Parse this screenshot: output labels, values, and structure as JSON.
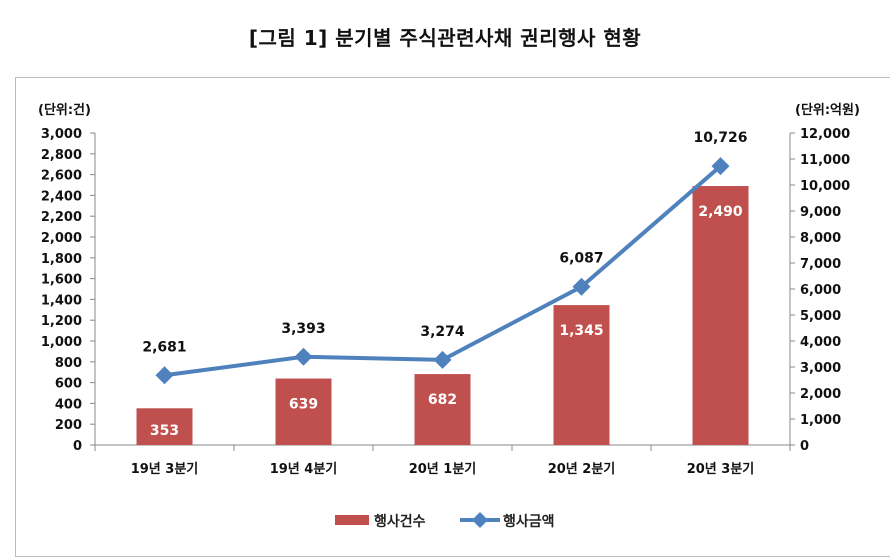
{
  "chart_data": {
    "type": "bar+line",
    "title": "[그림 1] 분기별 주식관련사채 권리행사 현황",
    "categories": [
      "19년 3분기",
      "19년 4분기",
      "20년 1분기",
      "20년 2분기",
      "20년 3분기"
    ],
    "series": [
      {
        "name": "행사건수",
        "type": "bar",
        "axis": "left",
        "color": "#c0504d",
        "values": [
          353,
          639,
          682,
          1345,
          2490
        ],
        "labels": [
          "353",
          "639",
          "682",
          "1,345",
          "2,490"
        ]
      },
      {
        "name": "행사금액",
        "type": "line",
        "axis": "right",
        "color": "#4f81bd",
        "values": [
          2681,
          3393,
          3274,
          6087,
          10726
        ],
        "labels": [
          "2,681",
          "3,393",
          "3,274",
          "6,087",
          "10,726"
        ]
      }
    ],
    "left_axis": {
      "label": "(단위:건)",
      "ylim": [
        0,
        3000
      ],
      "ticks": [
        "0",
        "200",
        "400",
        "600",
        "800",
        "1,000",
        "1,200",
        "1,400",
        "1,600",
        "1,800",
        "2,000",
        "2,200",
        "2,400",
        "2,600",
        "2,800",
        "3,000"
      ]
    },
    "right_axis": {
      "label": "(단위:억원)",
      "ylim": [
        0,
        12000
      ],
      "ticks": [
        "0",
        "1,000",
        "2,000",
        "3,000",
        "4,000",
        "5,000",
        "6,000",
        "7,000",
        "8,000",
        "9,000",
        "10,000",
        "11,000",
        "12,000"
      ]
    },
    "legend": "bottom",
    "grid": false
  }
}
